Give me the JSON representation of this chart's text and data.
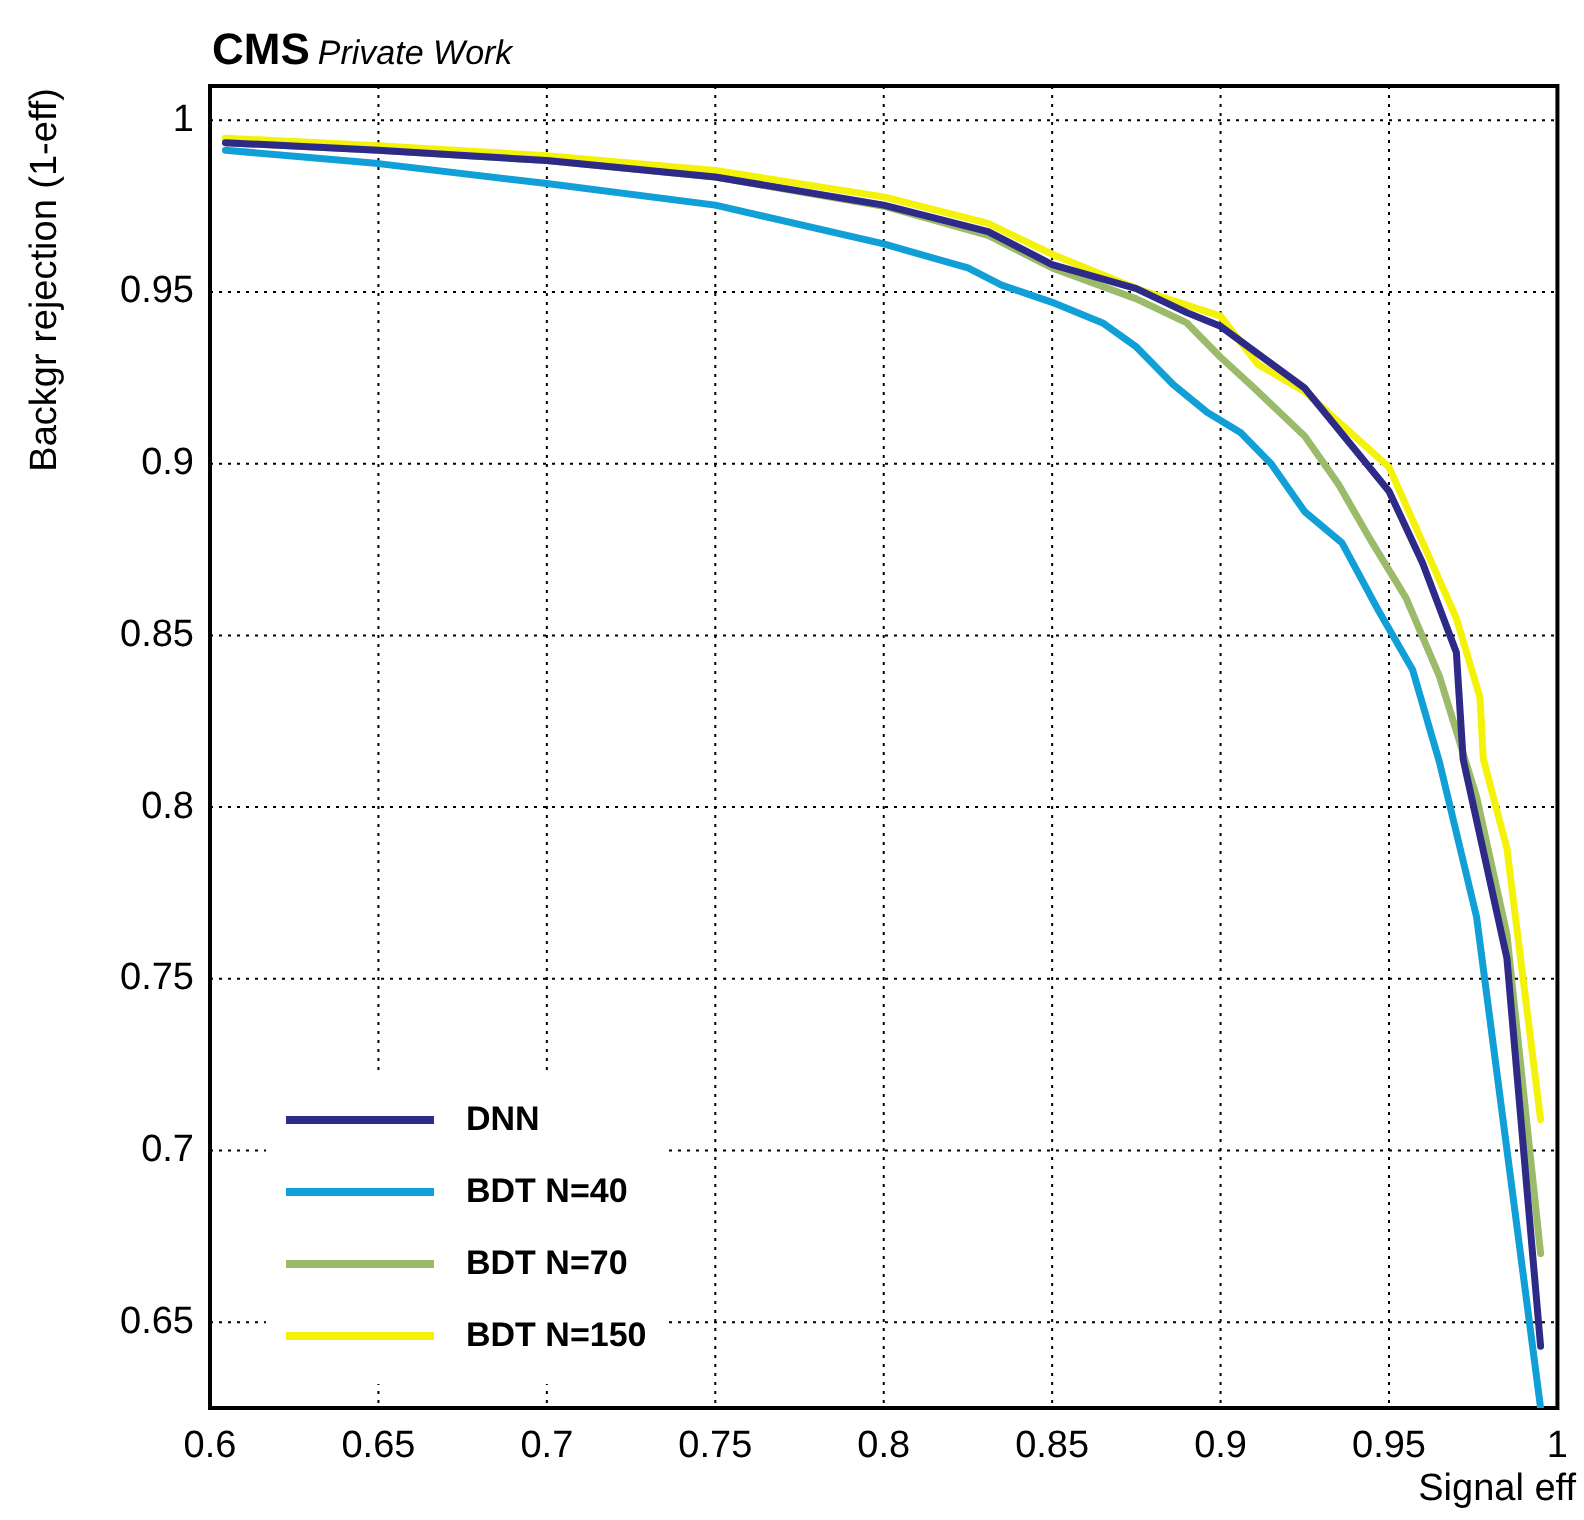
{
  "chart_data": {
    "type": "line",
    "title": "CMS",
    "subtitle": "Private Work",
    "xlabel": "Signal eff",
    "ylabel": "Backgr rejection (1-eff)",
    "xlim": [
      0.6,
      1.0
    ],
    "ylim": [
      0.625,
      1.01
    ],
    "xticks": [
      0.6,
      0.65,
      0.7,
      0.75,
      0.8,
      0.85,
      0.9,
      0.95,
      {
        "value": 1.0,
        "label": "1"
      }
    ],
    "yticks": [
      0.65,
      0.7,
      0.75,
      0.8,
      0.85,
      0.9,
      0.95,
      {
        "value": 1.0,
        "label": "1"
      }
    ],
    "grid": true,
    "legend": "bottom left",
    "marker": "none",
    "line_style": "solid",
    "series": [
      {
        "name": "DNN",
        "color": "#2e2a87",
        "x": [
          0.6046,
          0.65,
          0.7,
          0.75,
          0.8,
          0.831,
          0.85,
          0.875,
          0.89,
          0.9,
          0.925,
          0.95,
          0.96,
          0.97,
          0.972,
          0.985,
          0.995
        ],
        "values": [
          0.9935,
          0.9913,
          0.9883,
          0.9835,
          0.9753,
          0.9676,
          0.958,
          0.951,
          0.944,
          0.94,
          0.922,
          0.892,
          0.871,
          0.845,
          0.814,
          0.756,
          0.643
        ]
      },
      {
        "name": "BDT N=40",
        "color": "#109fd6",
        "x": [
          0.6046,
          0.65,
          0.7,
          0.75,
          0.8,
          0.825,
          0.835,
          0.85,
          0.865,
          0.875,
          0.886,
          0.896,
          0.906,
          0.915,
          0.925,
          0.936,
          0.947,
          0.957,
          0.965,
          0.976,
          0.995
        ],
        "values": [
          0.9913,
          0.9874,
          0.9816,
          0.9753,
          0.964,
          0.957,
          0.952,
          0.947,
          0.941,
          0.934,
          0.923,
          0.915,
          0.909,
          0.9,
          0.886,
          0.877,
          0.857,
          0.84,
          0.813,
          0.768,
          0.625
        ]
      },
      {
        "name": "BDT N=70",
        "color": "#9bbb6a",
        "x": [
          0.6046,
          0.65,
          0.7,
          0.75,
          0.8,
          0.831,
          0.85,
          0.875,
          0.89,
          0.9,
          0.91,
          0.925,
          0.935,
          0.945,
          0.955,
          0.965,
          0.976,
          0.985,
          0.995
        ],
        "values": [
          0.9935,
          0.9913,
          0.9883,
          0.9835,
          0.975,
          0.9665,
          0.957,
          0.948,
          0.941,
          0.931,
          0.922,
          0.908,
          0.894,
          0.877,
          0.861,
          0.838,
          0.803,
          0.763,
          0.67
        ]
      },
      {
        "name": "BDT N=150",
        "color": "#f5f20a",
        "x": [
          0.6046,
          0.65,
          0.7,
          0.75,
          0.8,
          0.831,
          0.85,
          0.875,
          0.9,
          0.911,
          0.925,
          0.95,
          0.96,
          0.97,
          0.977,
          0.978,
          0.985,
          0.995
        ],
        "values": [
          0.9948,
          0.9926,
          0.9897,
          0.9854,
          0.9777,
          0.97,
          0.961,
          0.951,
          0.943,
          0.929,
          0.921,
          0.899,
          0.877,
          0.855,
          0.832,
          0.814,
          0.788,
          0.709
        ]
      }
    ]
  }
}
